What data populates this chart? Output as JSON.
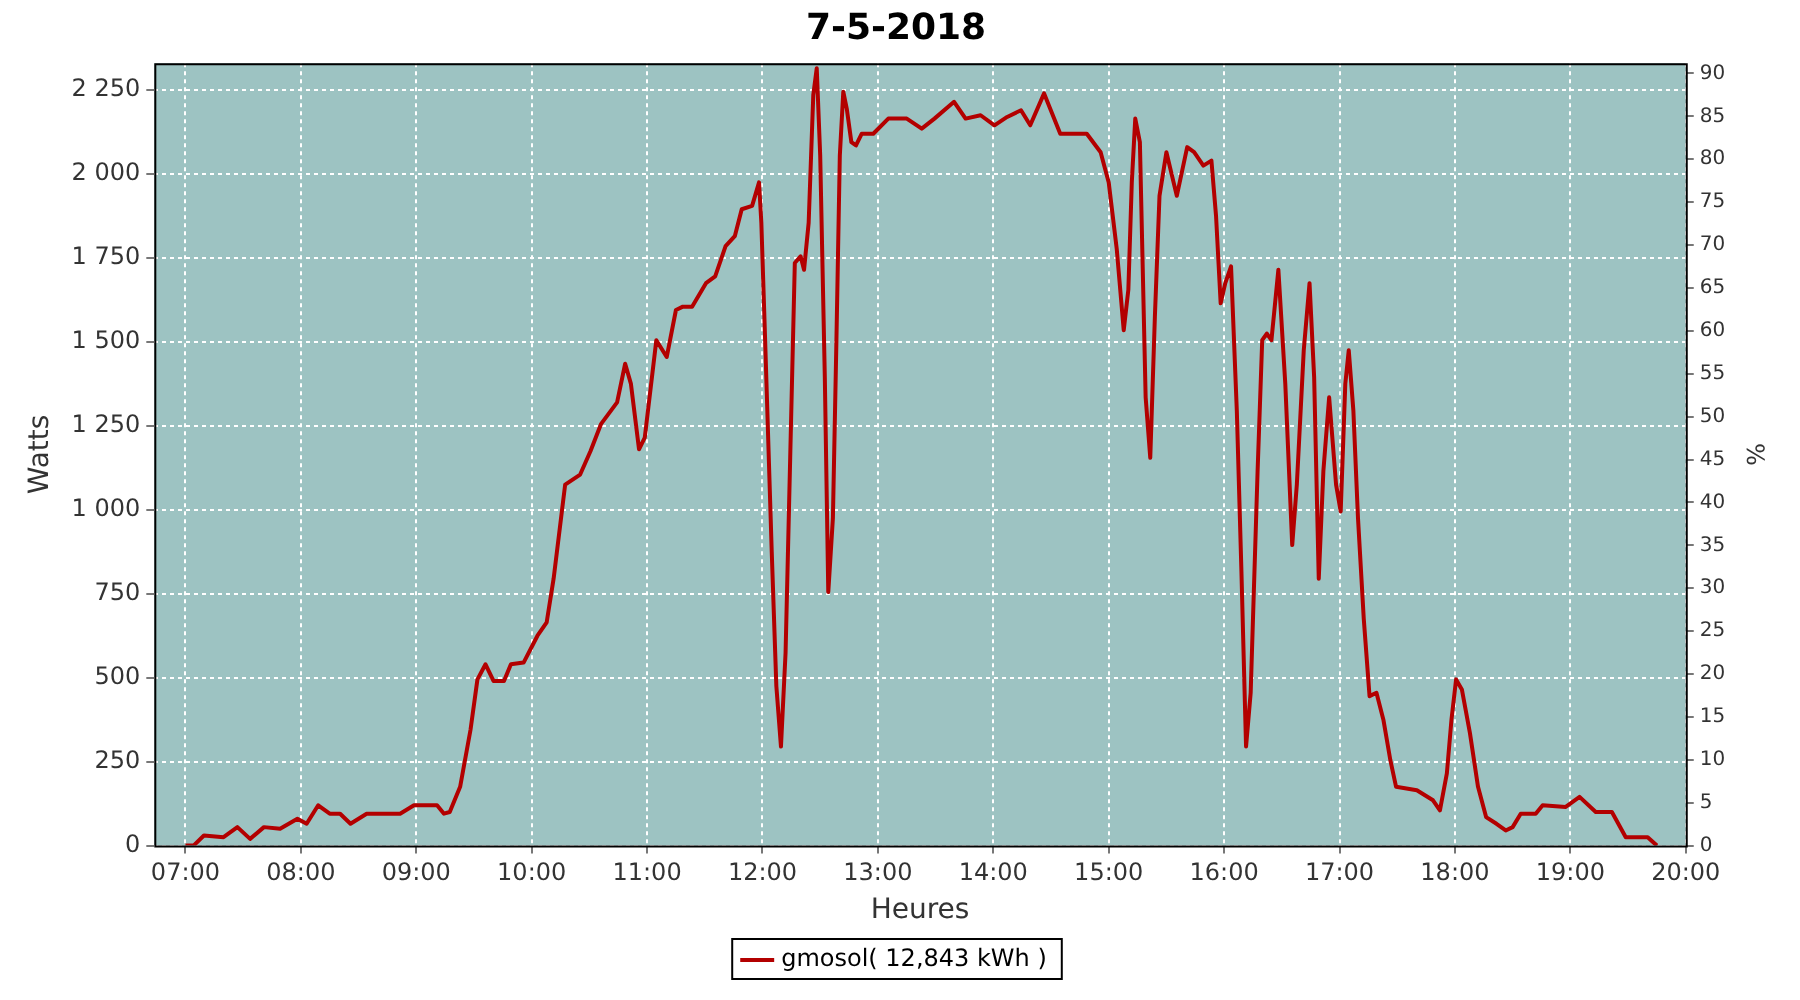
{
  "chart_data": {
    "type": "line",
    "title": "7-5-2018",
    "xlabel": "Heures",
    "ylabel": "Watts",
    "y2label": "%",
    "x": [
      7.0,
      7.07,
      7.16,
      7.33,
      7.45,
      7.56,
      7.68,
      7.82,
      7.97,
      8.05,
      8.15,
      8.25,
      8.34,
      8.43,
      8.57,
      8.86,
      8.98,
      9.18,
      9.24,
      9.29,
      9.38,
      9.47,
      9.53,
      9.6,
      9.67,
      9.76,
      9.82,
      9.93,
      10.05,
      10.13,
      10.19,
      10.29,
      10.42,
      10.51,
      10.6,
      10.74,
      10.81,
      10.86,
      10.93,
      10.98,
      11.08,
      11.17,
      11.25,
      11.31,
      11.39,
      11.51,
      11.59,
      11.68,
      11.76,
      11.82,
      11.91,
      11.97,
      11.99,
      12.02,
      12.08,
      12.12,
      12.16,
      12.2,
      12.24,
      12.28,
      12.33,
      12.36,
      12.4,
      12.44,
      12.47,
      12.5,
      12.54,
      12.57,
      12.61,
      12.64,
      12.67,
      12.7,
      12.73,
      12.77,
      12.81,
      12.86,
      12.96,
      13.09,
      13.25,
      13.38,
      13.49,
      13.66,
      13.76,
      13.89,
      14.01,
      14.12,
      14.24,
      14.32,
      14.44,
      14.58,
      14.81,
      14.93,
      15.0,
      15.07,
      15.13,
      15.17,
      15.2,
      15.23,
      15.27,
      15.32,
      15.36,
      15.4,
      15.44,
      15.5,
      15.59,
      15.68,
      15.74,
      15.82,
      15.89,
      15.93,
      15.97,
      16.01,
      16.06,
      16.11,
      16.15,
      16.19,
      16.23,
      16.29,
      16.33,
      16.37,
      16.41,
      16.47,
      16.53,
      16.59,
      16.63,
      16.69,
      16.74,
      16.78,
      16.82,
      16.86,
      16.91,
      16.97,
      17.01,
      17.05,
      17.08,
      17.12,
      17.16,
      17.21,
      17.26,
      17.32,
      17.38,
      17.44,
      17.49,
      17.67,
      17.81,
      17.87,
      17.93,
      17.97,
      18.01,
      18.06,
      18.13,
      18.2,
      18.27,
      18.36,
      18.44,
      18.5,
      18.57,
      18.7,
      18.76,
      18.96,
      19.08,
      19.22,
      19.36,
      19.48,
      19.67,
      19.75
    ],
    "series": [
      {
        "name": "gmosol( 12,843 kWh )",
        "color": "#b30000",
        "values": [
          0,
          0,
          30,
          25,
          55,
          20,
          55,
          50,
          80,
          65,
          120,
          95,
          95,
          65,
          95,
          95,
          120,
          120,
          95,
          100,
          175,
          345,
          495,
          540,
          490,
          490,
          540,
          545,
          625,
          665,
          795,
          1075,
          1105,
          1175,
          1255,
          1320,
          1435,
          1375,
          1180,
          1215,
          1505,
          1455,
          1595,
          1605,
          1605,
          1675,
          1695,
          1785,
          1815,
          1895,
          1905,
          1975,
          1855,
          1535,
          875,
          475,
          295,
          575,
          1155,
          1735,
          1755,
          1715,
          1855,
          2235,
          2315,
          2055,
          1395,
          755,
          975,
          1495,
          2055,
          2245,
          2195,
          2095,
          2085,
          2120,
          2120,
          2165,
          2165,
          2135,
          2165,
          2215,
          2165,
          2175,
          2145,
          2170,
          2190,
          2145,
          2240,
          2120,
          2120,
          2065,
          1975,
          1775,
          1535,
          1655,
          1975,
          2165,
          2095,
          1335,
          1155,
          1575,
          1935,
          2065,
          1935,
          2080,
          2065,
          2025,
          2040,
          1875,
          1615,
          1675,
          1725,
          1295,
          815,
          295,
          455,
          1115,
          1505,
          1525,
          1505,
          1715,
          1375,
          895,
          1075,
          1475,
          1675,
          1395,
          795,
          1115,
          1335,
          1075,
          995,
          1375,
          1475,
          1295,
          975,
          675,
          445,
          455,
          375,
          255,
          175,
          165,
          135,
          105,
          215,
          375,
          495,
          465,
          335,
          175,
          85,
          65,
          45,
          55,
          95,
          95,
          120,
          115,
          145,
          100,
          100,
          25,
          25,
          0
        ]
      }
    ],
    "xlim": [
      6.73,
      20
    ],
    "xticks": [
      {
        "value": 7,
        "label": "07:00"
      },
      {
        "value": 8,
        "label": "08:00"
      },
      {
        "value": 9,
        "label": "09:00"
      },
      {
        "value": 10,
        "label": "10:00"
      },
      {
        "value": 11,
        "label": "11:00"
      },
      {
        "value": 12,
        "label": "12:00"
      },
      {
        "value": 13,
        "label": "13:00"
      },
      {
        "value": 14,
        "label": "14:00"
      },
      {
        "value": 15,
        "label": "15:00"
      },
      {
        "value": 16,
        "label": "16:00"
      },
      {
        "value": 17,
        "label": "17:00"
      },
      {
        "value": 18,
        "label": "18:00"
      },
      {
        "value": 19,
        "label": "19:00"
      },
      {
        "value": 20,
        "label": "20:00"
      }
    ],
    "ylim": [
      0,
      2330
    ],
    "yticks": [
      0,
      250,
      500,
      750,
      {
        "value": 1000,
        "label": "1 000"
      },
      {
        "value": 1250,
        "label": "1 250"
      },
      {
        "value": 1500,
        "label": "1 500"
      },
      {
        "value": 1750,
        "label": "1 750"
      },
      {
        "value": 2000,
        "label": "2 000"
      },
      {
        "value": 2250,
        "label": "2 250"
      }
    ],
    "y2lim": [
      0,
      91.2
    ],
    "y2ticks": [
      0,
      5,
      10,
      15,
      20,
      25,
      30,
      35,
      40,
      45,
      50,
      55,
      60,
      65,
      70,
      75,
      80,
      85,
      90
    ],
    "grid": true,
    "legend": "bottom",
    "marker": "none",
    "line_style": "solid"
  }
}
